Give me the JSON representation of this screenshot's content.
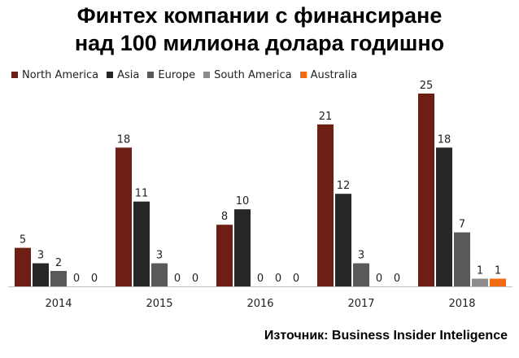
{
  "title": {
    "line1": "Финтех компании с финансиране",
    "line2": "над 100 милиона долара годишно"
  },
  "source": "Източник: Business Insider Inteligence",
  "colors": {
    "north_america": "#6e1f14",
    "asia": "#262626",
    "europe": "#595959",
    "south_america": "#8c8c8c",
    "australia": "#f26a0f",
    "axis": "#bfbfbf"
  },
  "chart_data": {
    "type": "bar",
    "title": "Финтех компании с финансиране над 100 милиона долара годишно",
    "categories": [
      "2014",
      "2015",
      "2016",
      "2017",
      "2018"
    ],
    "series": [
      {
        "name": "North America",
        "values": [
          5,
          18,
          8,
          21,
          25
        ]
      },
      {
        "name": "Asia",
        "values": [
          3,
          11,
          10,
          12,
          18
        ]
      },
      {
        "name": "Europe",
        "values": [
          2,
          3,
          0,
          3,
          7
        ]
      },
      {
        "name": "South America",
        "values": [
          0,
          0,
          0,
          0,
          1
        ]
      },
      {
        "name": "Australia",
        "values": [
          0,
          0,
          0,
          0,
          1
        ]
      }
    ],
    "ylim": [
      0,
      25
    ],
    "grid": false,
    "legend": "top-left",
    "data_labels": true
  }
}
